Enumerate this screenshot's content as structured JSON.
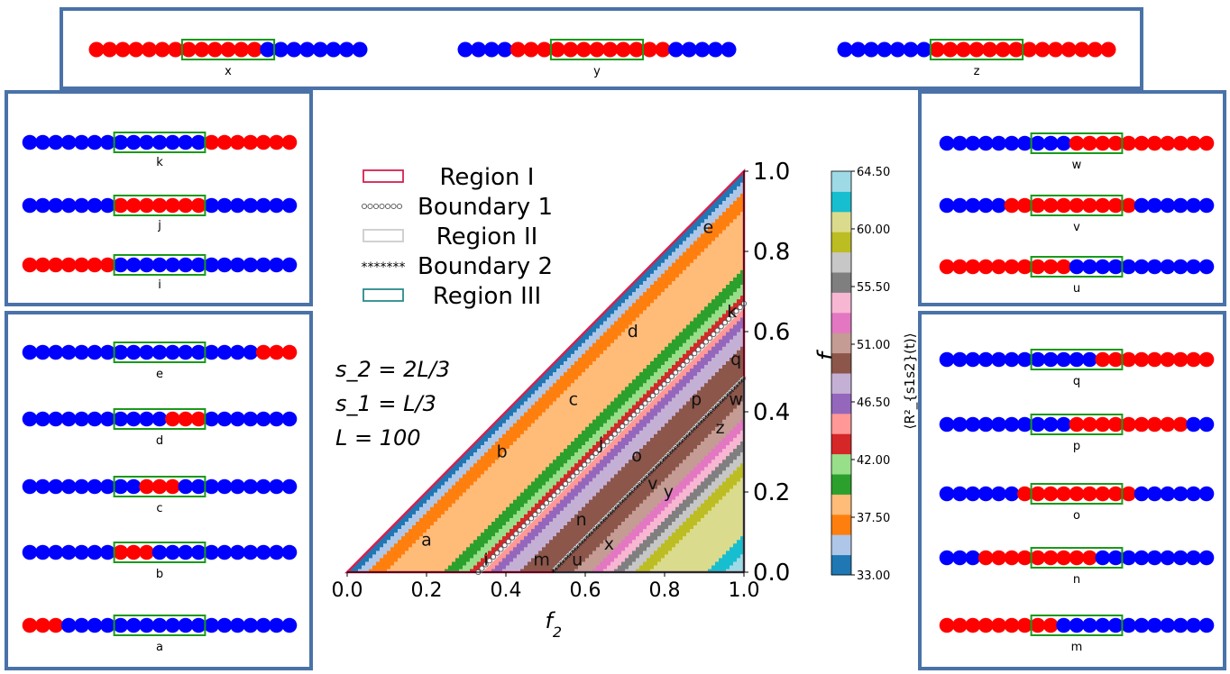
{
  "panels": {
    "top": {
      "chains": [
        {
          "label": "x",
          "beads": [
            1,
            1,
            1,
            1,
            1,
            1,
            1,
            1,
            1,
            1,
            1,
            1,
            1,
            0,
            0,
            0,
            0,
            0,
            0,
            0,
            0
          ],
          "win": [
            7,
            13
          ]
        },
        {
          "label": "y",
          "beads": [
            0,
            0,
            0,
            0,
            1,
            1,
            1,
            1,
            1,
            1,
            1,
            1,
            1,
            1,
            1,
            1,
            0,
            0,
            0,
            0,
            0
          ],
          "win": [
            7,
            13
          ]
        },
        {
          "label": "z",
          "beads": [
            0,
            0,
            0,
            0,
            0,
            0,
            0,
            1,
            1,
            1,
            1,
            1,
            1,
            1,
            1,
            1,
            1,
            1,
            1,
            1,
            1
          ],
          "win": [
            7,
            13
          ]
        }
      ]
    },
    "left_top": {
      "chains": [
        {
          "label": "k",
          "beads": [
            0,
            0,
            0,
            0,
            0,
            0,
            0,
            0,
            0,
            0,
            0,
            0,
            0,
            0,
            1,
            1,
            1,
            1,
            1,
            1,
            1
          ],
          "win": [
            7,
            13
          ]
        },
        {
          "label": "j",
          "beads": [
            0,
            0,
            0,
            0,
            0,
            0,
            0,
            1,
            1,
            1,
            1,
            1,
            1,
            1,
            0,
            0,
            0,
            0,
            0,
            0,
            0
          ],
          "win": [
            7,
            13
          ]
        },
        {
          "label": "i",
          "beads": [
            1,
            1,
            1,
            1,
            1,
            1,
            1,
            0,
            0,
            0,
            0,
            0,
            0,
            0,
            0,
            0,
            0,
            0,
            0,
            0,
            0
          ],
          "win": [
            7,
            13
          ]
        }
      ]
    },
    "left_bottom": {
      "chains": [
        {
          "label": "e",
          "beads": [
            0,
            0,
            0,
            0,
            0,
            0,
            0,
            0,
            0,
            0,
            0,
            0,
            0,
            0,
            0,
            0,
            0,
            0,
            1,
            1,
            1
          ],
          "win": [
            7,
            13
          ]
        },
        {
          "label": "d",
          "beads": [
            0,
            0,
            0,
            0,
            0,
            0,
            0,
            0,
            0,
            0,
            0,
            1,
            1,
            1,
            0,
            0,
            0,
            0,
            0,
            0,
            0
          ],
          "win": [
            7,
            13
          ]
        },
        {
          "label": "c",
          "beads": [
            0,
            0,
            0,
            0,
            0,
            0,
            0,
            0,
            0,
            1,
            1,
            1,
            0,
            0,
            0,
            0,
            0,
            0,
            0,
            0,
            0
          ],
          "win": [
            7,
            13
          ]
        },
        {
          "label": "b",
          "beads": [
            0,
            0,
            0,
            0,
            0,
            0,
            0,
            1,
            1,
            1,
            0,
            0,
            0,
            0,
            0,
            0,
            0,
            0,
            0,
            0,
            0
          ],
          "win": [
            7,
            13
          ]
        },
        {
          "label": "a",
          "beads": [
            1,
            1,
            1,
            0,
            0,
            0,
            0,
            0,
            0,
            0,
            0,
            0,
            0,
            0,
            0,
            0,
            0,
            0,
            0,
            0,
            0
          ],
          "win": [
            7,
            13
          ]
        }
      ]
    },
    "right_top": {
      "chains": [
        {
          "label": "w",
          "beads": [
            0,
            0,
            0,
            0,
            0,
            0,
            0,
            0,
            0,
            0,
            1,
            1,
            1,
            1,
            1,
            1,
            1,
            1,
            1,
            1,
            1
          ],
          "win": [
            7,
            13
          ]
        },
        {
          "label": "v",
          "beads": [
            0,
            0,
            0,
            0,
            0,
            1,
            1,
            1,
            1,
            1,
            1,
            1,
            1,
            1,
            1,
            0,
            0,
            0,
            0,
            0,
            0
          ],
          "win": [
            7,
            13
          ]
        },
        {
          "label": "u",
          "beads": [
            1,
            1,
            1,
            1,
            1,
            1,
            1,
            1,
            1,
            1,
            0,
            0,
            0,
            0,
            0,
            0,
            0,
            0,
            0,
            0,
            0
          ],
          "win": [
            7,
            13
          ]
        }
      ]
    },
    "right_bottom": {
      "chains": [
        {
          "label": "q",
          "beads": [
            0,
            0,
            0,
            0,
            0,
            0,
            0,
            0,
            0,
            0,
            0,
            0,
            1,
            1,
            1,
            1,
            1,
            1,
            1,
            1,
            1
          ],
          "win": [
            7,
            13
          ]
        },
        {
          "label": "p",
          "beads": [
            0,
            0,
            0,
            0,
            0,
            0,
            0,
            0,
            0,
            0,
            1,
            1,
            1,
            1,
            1,
            1,
            1,
            1,
            1,
            0,
            0
          ],
          "win": [
            7,
            13
          ]
        },
        {
          "label": "o",
          "beads": [
            0,
            0,
            0,
            0,
            0,
            0,
            1,
            1,
            1,
            1,
            1,
            1,
            1,
            1,
            1,
            0,
            0,
            0,
            0,
            0,
            0
          ],
          "win": [
            7,
            13
          ]
        },
        {
          "label": "n",
          "beads": [
            0,
            0,
            0,
            1,
            1,
            1,
            1,
            1,
            1,
            1,
            1,
            1,
            0,
            0,
            0,
            0,
            0,
            0,
            0,
            0,
            0
          ],
          "win": [
            7,
            13
          ]
        },
        {
          "label": "m",
          "beads": [
            1,
            1,
            1,
            1,
            1,
            1,
            1,
            1,
            1,
            0,
            0,
            0,
            0,
            0,
            0,
            0,
            0,
            0,
            0,
            0,
            0
          ],
          "win": [
            7,
            13
          ]
        }
      ]
    }
  },
  "chart_data": {
    "type": "heatmap",
    "xlabel": "f_2",
    "ylabel": "f_1",
    "xlim": [
      0,
      1
    ],
    "ylim": [
      0,
      1
    ],
    "xticks": [
      "0.0",
      "0.2",
      "0.4",
      "0.6",
      "0.8",
      "1.0"
    ],
    "yticks": [
      "0.0",
      "0.2",
      "0.4",
      "0.6",
      "0.8",
      "1.0"
    ],
    "colorbar": {
      "label": "⟨R²_{s1s2}(t)⟩",
      "ticks": [
        "33.00",
        "37.50",
        "42.00",
        "46.50",
        "51.00",
        "55.50",
        "60.00",
        "64.50"
      ],
      "levels": [
        33,
        34.5,
        36,
        37.5,
        39,
        40.5,
        42,
        43.5,
        45,
        46.5,
        48,
        49.5,
        51,
        52.5,
        54,
        55.5,
        57,
        58.5,
        60,
        61.5,
        63,
        64.5
      ],
      "colors": [
        "#1f77b4",
        "#aec7e8",
        "#ff7f0e",
        "#ffbb78",
        "#2ca02c",
        "#98df8a",
        "#d62728",
        "#ff9896",
        "#9467bd",
        "#c5b0d5",
        "#8c564b",
        "#c49c94",
        "#e377c2",
        "#f7b6d2",
        "#7f7f7f",
        "#c7c7c7",
        "#bcbd22",
        "#dbdb8d",
        "#17becf",
        "#9edae5"
      ]
    },
    "legend": {
      "position": "top-left",
      "entries": [
        {
          "label": "Region I",
          "style": "box",
          "color": "#d6204e"
        },
        {
          "label": "Boundary 1",
          "style": "circles",
          "color": "#555555"
        },
        {
          "label": "Region II",
          "style": "box",
          "color": "#cccccc"
        },
        {
          "label": "Boundary 2",
          "style": "stars",
          "color": "#000000"
        },
        {
          "label": "Region III",
          "style": "box",
          "color": "#2a8a8a"
        }
      ]
    },
    "annotations_params": [
      "s_2 = 2L/3",
      "s_1 = L/3",
      "L = 100"
    ],
    "points": [
      {
        "label": "a",
        "x": 0.2,
        "y": 0.08
      },
      {
        "label": "b",
        "x": 0.39,
        "y": 0.3
      },
      {
        "label": "c",
        "x": 0.57,
        "y": 0.43
      },
      {
        "label": "d",
        "x": 0.72,
        "y": 0.6
      },
      {
        "label": "e",
        "x": 0.91,
        "y": 0.86
      },
      {
        "label": "i",
        "x": 0.35,
        "y": 0.03
      },
      {
        "label": "j",
        "x": 0.64,
        "y": 0.32
      },
      {
        "label": "k",
        "x": 0.97,
        "y": 0.65
      },
      {
        "label": "m",
        "x": 0.49,
        "y": 0.03
      },
      {
        "label": "n",
        "x": 0.59,
        "y": 0.13
      },
      {
        "label": "o",
        "x": 0.73,
        "y": 0.29
      },
      {
        "label": "p",
        "x": 0.88,
        "y": 0.43
      },
      {
        "label": "q",
        "x": 0.98,
        "y": 0.53
      },
      {
        "label": "u",
        "x": 0.58,
        "y": 0.03
      },
      {
        "label": "v",
        "x": 0.77,
        "y": 0.22
      },
      {
        "label": "w",
        "x": 0.98,
        "y": 0.43
      },
      {
        "label": "x",
        "x": 0.66,
        "y": 0.07
      },
      {
        "label": "y",
        "x": 0.81,
        "y": 0.2
      },
      {
        "label": "z",
        "x": 0.94,
        "y": 0.36
      }
    ],
    "boundary_1": {
      "from": [
        0.33,
        0.0
      ],
      "to": [
        1.0,
        0.67
      ]
    },
    "boundary_2": {
      "from": [
        0.52,
        0.0
      ],
      "to": [
        1.0,
        0.48
      ]
    }
  }
}
